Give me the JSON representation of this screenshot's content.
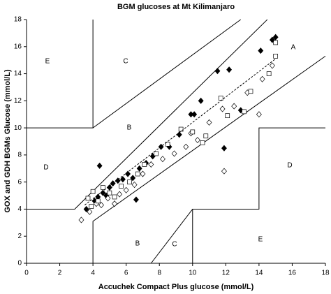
{
  "chart_data": {
    "type": "scatter",
    "title": "BGM glucoses at Mt Kilimanjaro",
    "x_label": "Accuchek Compact Plus glucose (mmol/L)",
    "y_label": "GOX and GDH BGMs Glucose (mmol/L)",
    "xlim": [
      0,
      18
    ],
    "ylim": [
      0,
      18
    ],
    "xticks": [
      0,
      2,
      4,
      6,
      8,
      10,
      12,
      14,
      16,
      18
    ],
    "yticks": [
      0,
      2,
      4,
      6,
      8,
      10,
      12,
      14,
      16,
      18
    ],
    "grid": false,
    "series": [
      {
        "marker": "diamond-filled",
        "color": "#000000",
        "x": [
          3.6,
          4.1,
          4.3,
          4.6,
          4.8,
          5.0,
          5.2,
          5.5,
          5.8,
          6.1,
          6.4,
          6.8,
          7.2,
          7.6,
          8.1,
          8.6,
          9.2,
          9.9,
          10.5,
          11.5,
          12.2,
          12.9,
          14.1,
          14.8,
          15.0,
          4.4,
          5.3,
          6.6,
          11.9,
          10.1
        ],
        "values": [
          4.0,
          4.6,
          4.9,
          5.2,
          5.0,
          5.6,
          5.9,
          6.1,
          6.2,
          6.6,
          6.3,
          7.0,
          7.4,
          7.9,
          8.6,
          8.6,
          9.5,
          11.0,
          12.0,
          14.2,
          14.3,
          11.3,
          15.7,
          16.5,
          16.7,
          7.2,
          4.4,
          4.7,
          8.5,
          11.0
        ]
      },
      {
        "marker": "diamond-open",
        "color": "#000000",
        "x": [
          3.3,
          3.8,
          4.2,
          4.5,
          4.9,
          5.3,
          5.6,
          6.0,
          6.5,
          7.0,
          7.5,
          8.2,
          8.9,
          9.6,
          10.3,
          11.0,
          11.8,
          12.5,
          13.3,
          14.2,
          14.8,
          11.9,
          14.0,
          9.9
        ],
        "values": [
          3.2,
          3.8,
          4.4,
          4.3,
          4.8,
          4.4,
          5.1,
          5.4,
          5.8,
          6.6,
          7.3,
          7.7,
          8.1,
          8.6,
          9.1,
          10.4,
          11.4,
          11.6,
          12.6,
          13.6,
          14.6,
          6.8,
          11.0,
          9.6
        ]
      },
      {
        "marker": "square-open",
        "color": "#000000",
        "x": [
          3.7,
          4.0,
          4.3,
          4.6,
          5.0,
          5.3,
          5.7,
          6.2,
          6.7,
          7.1,
          7.8,
          8.5,
          9.3,
          10.0,
          10.6,
          11.7,
          12.1,
          13.1,
          13.5,
          14.6,
          15.0,
          15.0,
          3.9,
          10.8
        ],
        "values": [
          4.8,
          5.3,
          4.6,
          5.6,
          5.2,
          4.9,
          5.7,
          6.0,
          6.6,
          7.3,
          8.1,
          8.8,
          9.9,
          9.7,
          8.9,
          12.2,
          10.9,
          11.2,
          12.7,
          14.0,
          15.3,
          16.3,
          4.2,
          9.4
        ]
      }
    ],
    "boundary_lines": [
      {
        "x": [
          0,
          4,
          4
        ],
        "y": [
          10,
          10,
          18
        ]
      },
      {
        "x": [
          4,
          12.9
        ],
        "y": [
          10,
          18
        ]
      },
      {
        "x": [
          0,
          2.9,
          14.5
        ],
        "y": [
          4,
          4,
          18
        ]
      },
      {
        "x": [
          4,
          4,
          18
        ],
        "y": [
          0,
          3.1,
          15.3
        ]
      },
      {
        "x": [
          7.5,
          10,
          14,
          14,
          18
        ],
        "y": [
          0,
          4,
          4,
          10,
          10
        ]
      },
      {
        "x": [
          10,
          10
        ],
        "y": [
          0,
          4
        ]
      }
    ],
    "trend_line": {
      "x": [
        3.5,
        15
      ],
      "y": [
        4.3,
        15.1
      ]
    },
    "zone_labels": [
      "E",
      "C",
      "A",
      "B",
      "D",
      "D",
      "B",
      "C",
      "E"
    ]
  }
}
